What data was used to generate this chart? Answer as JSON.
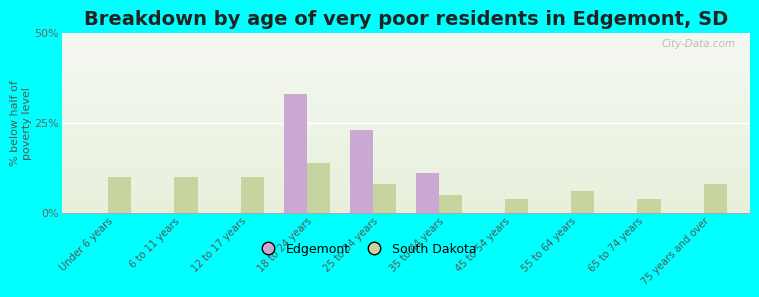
{
  "title": "Breakdown by age of very poor residents in Edgemont, SD",
  "categories": [
    "Under 6 years",
    "6 to 11 years",
    "12 to 17 years",
    "18 to 24 years",
    "25 to 34 years",
    "35 to 44 years",
    "45 to 54 years",
    "55 to 64 years",
    "65 to 74 years",
    "75 years and over"
  ],
  "edgemont": [
    0,
    0,
    0,
    33.0,
    23.0,
    11.0,
    0,
    0,
    0,
    0
  ],
  "south_dakota": [
    10.0,
    10.0,
    10.0,
    14.0,
    8.0,
    5.0,
    4.0,
    6.0,
    4.0,
    8.0
  ],
  "edgemont_color": "#c9a8d4",
  "sd_color": "#c8d4a0",
  "background_color": "#00ffff",
  "ylabel": "% below half of\npoverty level",
  "ylim": [
    0,
    50
  ],
  "yticks": [
    0,
    25,
    50
  ],
  "ytick_labels": [
    "0%",
    "25%",
    "50%"
  ],
  "title_fontsize": 14,
  "bar_width": 0.35,
  "watermark": "City-Data.com"
}
